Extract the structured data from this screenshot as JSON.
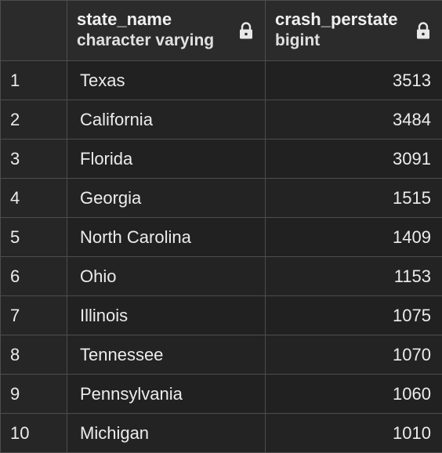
{
  "columns": [
    {
      "name": "state_name",
      "type": "character varying",
      "icon": "lock-icon"
    },
    {
      "name": "crash_perstate",
      "type": "bigint",
      "icon": "lock-icon"
    }
  ],
  "rows": [
    {
      "num": "1",
      "state_name": "Texas",
      "crash_perstate": "3513"
    },
    {
      "num": "2",
      "state_name": "California",
      "crash_perstate": "3484"
    },
    {
      "num": "3",
      "state_name": "Florida",
      "crash_perstate": "3091"
    },
    {
      "num": "4",
      "state_name": "Georgia",
      "crash_perstate": "1515"
    },
    {
      "num": "5",
      "state_name": "North Carolina",
      "crash_perstate": "1409"
    },
    {
      "num": "6",
      "state_name": "Ohio",
      "crash_perstate": "1153"
    },
    {
      "num": "7",
      "state_name": "Illinois",
      "crash_perstate": "1075"
    },
    {
      "num": "8",
      "state_name": "Tennessee",
      "crash_perstate": "1070"
    },
    {
      "num": "9",
      "state_name": "Pennsylvania",
      "crash_perstate": "1060"
    },
    {
      "num": "10",
      "state_name": "Michigan",
      "crash_perstate": "1010"
    }
  ],
  "colors": {
    "background": "#212121",
    "header_background": "#2b2b2b",
    "grid_line": "#4d4d4d",
    "text": "#e8e8e8"
  }
}
